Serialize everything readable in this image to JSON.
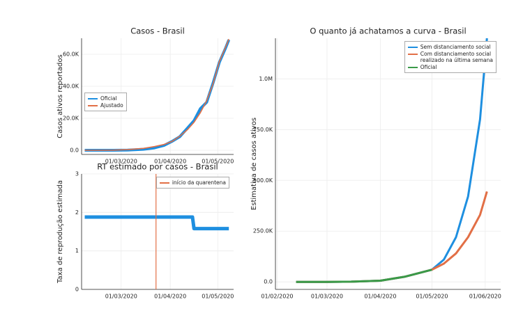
{
  "chart_data": [
    {
      "type": "line",
      "title": "Casos - Brasil",
      "ylabel": "Casos ativos reportados",
      "x": [
        "2020-02-07",
        "2020-02-15",
        "2020-02-25",
        "2020-03-05",
        "2020-03-15",
        "2020-03-22",
        "2020-03-28",
        "2020-04-02",
        "2020-04-07",
        "2020-04-12",
        "2020-04-16",
        "2020-04-20",
        "2020-04-24",
        "2020-04-28",
        "2020-05-02",
        "2020-05-06",
        "2020-05-08"
      ],
      "series": [
        {
          "name": "Oficial",
          "color": "#1e8fe0",
          "width": 4,
          "values": [
            0,
            0,
            0,
            100,
            600,
            1500,
            3000,
            5500,
            8500,
            14000,
            18500,
            26000,
            30000,
            42000,
            55000,
            64000,
            69000
          ]
        },
        {
          "name": "Ajustado",
          "color": "#e26f46",
          "width": 1.6,
          "values": [
            0,
            0,
            100,
            400,
            1200,
            2300,
            3600,
            5500,
            8800,
            13000,
            17500,
            23500,
            31000,
            41500,
            55500,
            64500,
            69500
          ]
        }
      ],
      "xlim": [
        "2020-02-05",
        "2020-05-11"
      ],
      "xticks": [
        {
          "value": "2020-03-01",
          "label": "01/03/2020"
        },
        {
          "value": "2020-04-01",
          "label": "01/04/2020"
        },
        {
          "value": "2020-05-01",
          "label": "01/05/2020"
        }
      ],
      "ylim": [
        -2600,
        70000
      ],
      "yticks": [
        {
          "value": 0,
          "label": "0.0"
        },
        {
          "value": 20000,
          "label": "20.0K"
        },
        {
          "value": 40000,
          "label": "40.0K"
        },
        {
          "value": 60000,
          "label": "60.0K"
        }
      ],
      "grid": true,
      "legend": "center left"
    },
    {
      "type": "line",
      "title": "RT estimado por casos - Brasil",
      "ylabel": "Taxa de reprodução estimada",
      "x": [
        "2020-02-07",
        "2020-04-15",
        "2020-04-16",
        "2020-05-08"
      ],
      "series": [
        {
          "name": null,
          "color": "#1e8fe0",
          "width": 5,
          "values": [
            1.88,
            1.88,
            1.58,
            1.58
          ]
        }
      ],
      "vline": {
        "x": "2020-03-23",
        "name": "início da quarentena",
        "color": "#e26f46"
      },
      "xlim": [
        "2020-02-05",
        "2020-05-11"
      ],
      "xticks": [
        {
          "value": "2020-03-01",
          "label": "01/03/2020"
        },
        {
          "value": "2020-04-01",
          "label": "01/04/2020"
        },
        {
          "value": "2020-05-01",
          "label": "01/05/2020"
        }
      ],
      "ylim": [
        0,
        3
      ],
      "yticks": [
        0,
        1,
        2,
        3
      ],
      "grid": true,
      "legend": "upper right"
    },
    {
      "type": "line",
      "title": "O quanto já achatamos a curva - Brasil",
      "ylabel": "Estimativa de casos ativos",
      "x": [
        "2020-02-12",
        "2020-03-01",
        "2020-03-15",
        "2020-04-01",
        "2020-04-15",
        "2020-05-01",
        "2020-05-08",
        "2020-05-15",
        "2020-05-22",
        "2020-05-29",
        "2020-06-02"
      ],
      "series": [
        {
          "name": "Sem distanciamento social",
          "color": "#1e8fe0",
          "width": 3,
          "values": [
            0,
            0,
            1000,
            6000,
            25000,
            60000,
            110000,
            220000,
            420000,
            800000,
            1200000
          ]
        },
        {
          "name": "Com distanciamento social\nrealizado na última semana",
          "color": "#e26f46",
          "width": 3,
          "values": [
            0,
            0,
            1000,
            6000,
            25000,
            60000,
            90000,
            140000,
            220000,
            330000,
            445000
          ]
        },
        {
          "name": "Oficial",
          "color": "#3a9a48",
          "width": 3,
          "values": [
            0,
            0,
            1000,
            6000,
            25000,
            60000,
            null,
            null,
            null,
            null,
            null
          ]
        }
      ],
      "xlim": [
        "2020-01-31",
        "2020-06-10"
      ],
      "xticks": [
        {
          "value": "2020-02-01",
          "label": "01/02/2020"
        },
        {
          "value": "2020-03-01",
          "label": "01/03/2020"
        },
        {
          "value": "2020-04-01",
          "label": "01/04/2020"
        },
        {
          "value": "2020-05-01",
          "label": "01/05/2020"
        },
        {
          "value": "2020-06-01",
          "label": "01/06/2020"
        }
      ],
      "ylim": [
        -37000,
        1200000
      ],
      "yticks": [
        {
          "value": 0,
          "label": "0.0"
        },
        {
          "value": 250000,
          "label": "250.0K"
        },
        {
          "value": 500000,
          "label": "500.0K"
        },
        {
          "value": 750000,
          "label": "750.0K"
        },
        {
          "value": 1000000,
          "label": "1.0M"
        }
      ],
      "grid": true,
      "legend": "upper right"
    }
  ]
}
